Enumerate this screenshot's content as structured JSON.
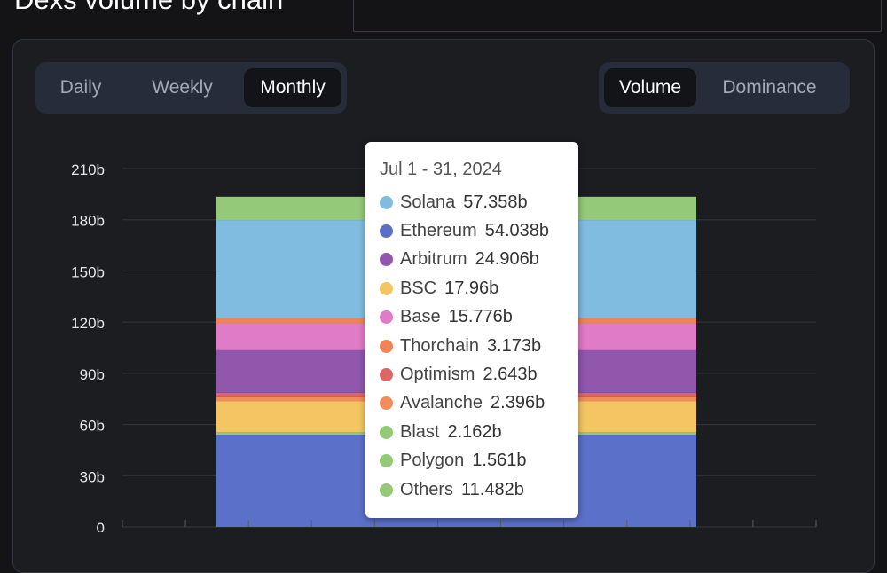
{
  "header": {
    "title": "Dexs volume by chain"
  },
  "controls": {
    "frequency": [
      {
        "label": "Daily",
        "active": false
      },
      {
        "label": "Weekly",
        "active": false
      },
      {
        "label": "Monthly",
        "active": true
      }
    ],
    "metric": [
      {
        "label": "Volume",
        "active": true
      },
      {
        "label": "Dominance",
        "active": false
      }
    ]
  },
  "tooltip": {
    "date": "Jul 1 - 31, 2024",
    "items": [
      {
        "name": "Solana",
        "value": "57.358b",
        "color": "#80bce0"
      },
      {
        "name": "Ethereum",
        "value": "54.038b",
        "color": "#5b70c8"
      },
      {
        "name": "Arbitrum",
        "value": "24.906b",
        "color": "#9057ad"
      },
      {
        "name": "BSC",
        "value": "17.96b",
        "color": "#f3c663"
      },
      {
        "name": "Base",
        "value": "15.776b",
        "color": "#e07bc8"
      },
      {
        "name": "Thorchain",
        "value": "3.173b",
        "color": "#ef8555"
      },
      {
        "name": "Optimism",
        "value": "2.643b",
        "color": "#e06565"
      },
      {
        "name": "Avalanche",
        "value": "2.396b",
        "color": "#f28c5b"
      },
      {
        "name": "Blast",
        "value": "2.162b",
        "color": "#93c977"
      },
      {
        "name": "Polygon",
        "value": "1.561b",
        "color": "#93c977"
      },
      {
        "name": "Others",
        "value": "11.482b",
        "color": "#93c977"
      }
    ]
  },
  "chart_data": {
    "type": "bar",
    "stacked": true,
    "unit": "b",
    "ylim": [
      0,
      210
    ],
    "yticks": [
      "0",
      "30b",
      "60b",
      "90b",
      "120b",
      "150b",
      "180b",
      "210b"
    ],
    "grid": true,
    "categories": [
      "Jul 1 - 31, 2024"
    ],
    "series": [
      {
        "name": "Ethereum",
        "values": [
          54.038
        ],
        "color": "#5b70c8"
      },
      {
        "name": "Polygon",
        "values": [
          1.561
        ],
        "color": "#93c977"
      },
      {
        "name": "BSC",
        "values": [
          17.96
        ],
        "color": "#f3c663"
      },
      {
        "name": "Avalanche",
        "values": [
          2.396
        ],
        "color": "#f28c5b"
      },
      {
        "name": "Optimism",
        "values": [
          2.643
        ],
        "color": "#e06565"
      },
      {
        "name": "Arbitrum",
        "values": [
          24.906
        ],
        "color": "#9057ad"
      },
      {
        "name": "Base",
        "values": [
          15.776
        ],
        "color": "#e07bc8"
      },
      {
        "name": "Thorchain",
        "values": [
          3.173
        ],
        "color": "#ef8555"
      },
      {
        "name": "Solana",
        "values": [
          57.358
        ],
        "color": "#80bce0"
      },
      {
        "name": "Blast",
        "values": [
          2.162
        ],
        "color": "#93c977"
      },
      {
        "name": "Others",
        "values": [
          11.482
        ],
        "color": "#93c977"
      }
    ]
  }
}
